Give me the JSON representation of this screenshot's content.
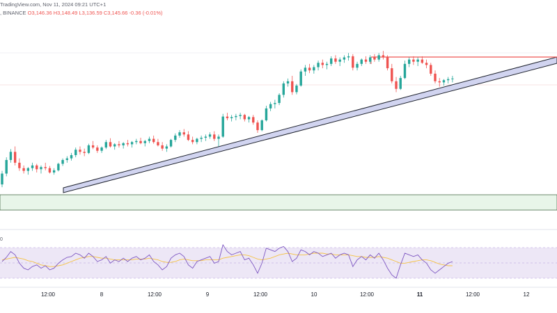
{
  "header": {
    "line1": "TradingView.com, Nov 11, 2024 09:21 UTC+1",
    "exchange": ", BINANCE",
    "ohlc": "O3,146.36  H3,148.49  L3,136.59  C3,145.66  -0.36 (-0.01%)"
  },
  "indicator_label": "0",
  "colors": {
    "up": "#26a69a",
    "down": "#ef5350",
    "trendline_fill": "#d1d4f0",
    "trendline_stroke": "#1e222d",
    "resistance": "#ef5350",
    "support_fill": "#e8f5e9",
    "support_stroke": "#4a6b4a",
    "rsi_line": "#7e57c2",
    "rsi_ma": "#f5c242",
    "rsi_band": "#ede7f6"
  },
  "chart_data": {
    "type": "candlestick",
    "x_tick_labels": [
      "12:00",
      "8",
      "12:00",
      "9",
      "12:00",
      "10",
      "12:00",
      "11",
      "12:00",
      "12"
    ],
    "indicator": "RSI",
    "candles": [
      [
        3010,
        3035,
        3005,
        3030
      ],
      [
        3030,
        3060,
        3025,
        3055
      ],
      [
        3055,
        3075,
        3050,
        3070
      ],
      [
        3070,
        3080,
        3045,
        3050
      ],
      [
        3050,
        3058,
        3035,
        3040
      ],
      [
        3040,
        3045,
        3030,
        3035
      ],
      [
        3035,
        3042,
        3028,
        3040
      ],
      [
        3040,
        3050,
        3035,
        3045
      ],
      [
        3045,
        3048,
        3032,
        3038
      ],
      [
        3038,
        3045,
        3030,
        3042
      ],
      [
        3042,
        3050,
        3036,
        3040
      ],
      [
        3040,
        3044,
        3030,
        3032
      ],
      [
        3032,
        3040,
        3028,
        3036
      ],
      [
        3036,
        3050,
        3034,
        3048
      ],
      [
        3048,
        3058,
        3044,
        3055
      ],
      [
        3055,
        3062,
        3050,
        3058
      ],
      [
        3058,
        3068,
        3054,
        3064
      ],
      [
        3064,
        3078,
        3060,
        3074
      ],
      [
        3074,
        3080,
        3065,
        3070
      ],
      [
        3070,
        3076,
        3062,
        3068
      ],
      [
        3068,
        3085,
        3066,
        3082
      ],
      [
        3082,
        3090,
        3075,
        3078
      ],
      [
        3078,
        3082,
        3068,
        3072
      ],
      [
        3072,
        3080,
        3068,
        3078
      ],
      [
        3078,
        3092,
        3075,
        3088
      ],
      [
        3088,
        3095,
        3078,
        3080
      ],
      [
        3080,
        3086,
        3074,
        3084
      ],
      [
        3084,
        3090,
        3078,
        3082
      ],
      [
        3082,
        3088,
        3076,
        3086
      ],
      [
        3086,
        3092,
        3080,
        3084
      ],
      [
        3084,
        3090,
        3078,
        3088
      ],
      [
        3088,
        3094,
        3084,
        3090
      ],
      [
        3090,
        3096,
        3084,
        3086
      ],
      [
        3086,
        3092,
        3080,
        3090
      ],
      [
        3090,
        3098,
        3086,
        3094
      ],
      [
        3094,
        3100,
        3085,
        3088
      ],
      [
        3088,
        3094,
        3080,
        3082
      ],
      [
        3082,
        3088,
        3072,
        3076
      ],
      [
        3076,
        3084,
        3070,
        3080
      ],
      [
        3080,
        3094,
        3078,
        3092
      ],
      [
        3092,
        3104,
        3088,
        3100
      ],
      [
        3100,
        3110,
        3096,
        3106
      ],
      [
        3106,
        3112,
        3098,
        3102
      ],
      [
        3102,
        3108,
        3090,
        3092
      ],
      [
        3092,
        3098,
        3084,
        3088
      ],
      [
        3088,
        3096,
        3084,
        3094
      ],
      [
        3094,
        3100,
        3088,
        3096
      ],
      [
        3096,
        3102,
        3090,
        3098
      ],
      [
        3098,
        3106,
        3094,
        3102
      ],
      [
        3102,
        3108,
        3090,
        3094
      ],
      [
        3094,
        3102,
        3080,
        3098
      ],
      [
        3098,
        3140,
        3096,
        3135
      ],
      [
        3135,
        3142,
        3128,
        3132
      ],
      [
        3132,
        3138,
        3126,
        3134
      ],
      [
        3134,
        3140,
        3128,
        3136
      ],
      [
        3136,
        3142,
        3130,
        3138
      ],
      [
        3138,
        3140,
        3126,
        3130
      ],
      [
        3130,
        3136,
        3124,
        3134
      ],
      [
        3134,
        3138,
        3120,
        3124
      ],
      [
        3124,
        3128,
        3105,
        3110
      ],
      [
        3110,
        3130,
        3108,
        3128
      ],
      [
        3128,
        3155,
        3126,
        3150
      ],
      [
        3150,
        3162,
        3145,
        3158
      ],
      [
        3158,
        3166,
        3150,
        3160
      ],
      [
        3160,
        3178,
        3156,
        3175
      ],
      [
        3175,
        3200,
        3170,
        3196
      ],
      [
        3196,
        3205,
        3190,
        3200
      ],
      [
        3200,
        3210,
        3175,
        3180
      ],
      [
        3180,
        3195,
        3176,
        3192
      ],
      [
        3192,
        3222,
        3190,
        3218
      ],
      [
        3218,
        3230,
        3210,
        3225
      ],
      [
        3225,
        3232,
        3215,
        3220
      ],
      [
        3220,
        3230,
        3214,
        3226
      ],
      [
        3226,
        3238,
        3220,
        3234
      ],
      [
        3234,
        3240,
        3224,
        3230
      ],
      [
        3230,
        3236,
        3222,
        3232
      ],
      [
        3232,
        3246,
        3228,
        3242
      ],
      [
        3242,
        3248,
        3232,
        3236
      ],
      [
        3236,
        3244,
        3228,
        3240
      ],
      [
        3240,
        3248,
        3234,
        3244
      ],
      [
        3244,
        3252,
        3238,
        3246
      ],
      [
        3246,
        3250,
        3220,
        3225
      ],
      [
        3225,
        3236,
        3220,
        3232
      ],
      [
        3232,
        3242,
        3228,
        3240
      ],
      [
        3240,
        3246,
        3232,
        3236
      ],
      [
        3236,
        3248,
        3232,
        3244
      ],
      [
        3244,
        3250,
        3236,
        3240
      ],
      [
        3240,
        3252,
        3236,
        3248
      ],
      [
        3248,
        3256,
        3240,
        3244
      ],
      [
        3244,
        3248,
        3220,
        3224
      ],
      [
        3224,
        3232,
        3196,
        3200
      ],
      [
        3200,
        3208,
        3180,
        3186
      ],
      [
        3186,
        3210,
        3184,
        3206
      ],
      [
        3206,
        3238,
        3204,
        3232
      ],
      [
        3232,
        3244,
        3226,
        3240
      ],
      [
        3240,
        3246,
        3230,
        3236
      ],
      [
        3236,
        3244,
        3228,
        3240
      ],
      [
        3240,
        3246,
        3232,
        3234
      ],
      [
        3234,
        3240,
        3224,
        3230
      ],
      [
        3230,
        3234,
        3210,
        3214
      ],
      [
        3214,
        3220,
        3196,
        3200
      ],
      [
        3200,
        3206,
        3190,
        3198
      ],
      [
        3198,
        3204,
        3192,
        3202
      ],
      [
        3202,
        3208,
        3196,
        3204
      ],
      [
        3204,
        3210,
        3198,
        3205
      ]
    ],
    "rsi": [
      50,
      55,
      62,
      58,
      48,
      42,
      40,
      44,
      46,
      42,
      45,
      40,
      42,
      48,
      52,
      55,
      56,
      60,
      58,
      54,
      60,
      56,
      50,
      52,
      56,
      48,
      52,
      50,
      54,
      50,
      54,
      56,
      52,
      54,
      58,
      50,
      46,
      40,
      44,
      54,
      58,
      60,
      56,
      46,
      42,
      50,
      52,
      54,
      56,
      48,
      50,
      70,
      62,
      58,
      60,
      62,
      52,
      54,
      46,
      36,
      48,
      66,
      64,
      62,
      66,
      68,
      62,
      50,
      54,
      64,
      62,
      58,
      62,
      60,
      56,
      58,
      60,
      54,
      58,
      60,
      58,
      44,
      52,
      56,
      52,
      58,
      54,
      60,
      52,
      42,
      34,
      30,
      46,
      60,
      58,
      56,
      58,
      52,
      48,
      40,
      36,
      40,
      44,
      48,
      50
    ],
    "rsi_ma": [
      52,
      53,
      54,
      55,
      54,
      53,
      51,
      50,
      48,
      46,
      45,
      44,
      44,
      45,
      46,
      48,
      50,
      52,
      54,
      55,
      56,
      56,
      55,
      54,
      54,
      53,
      52,
      52,
      52,
      52,
      52,
      53,
      53,
      53,
      54,
      53,
      52,
      50,
      49,
      49,
      50,
      52,
      53,
      52,
      51,
      51,
      51,
      52,
      52,
      52,
      52,
      54,
      55,
      56,
      57,
      58,
      58,
      57,
      55,
      53,
      52,
      53,
      54,
      56,
      58,
      59,
      60,
      59,
      58,
      58,
      58,
      59,
      60,
      60,
      60,
      59,
      59,
      58,
      58,
      58,
      58,
      57,
      56,
      56,
      55,
      55,
      55,
      56,
      55,
      54,
      52,
      50,
      48,
      48,
      49,
      50,
      51,
      52,
      52,
      51,
      49,
      47,
      46,
      45,
      45
    ],
    "rsi_bands": [
      70,
      30
    ]
  }
}
